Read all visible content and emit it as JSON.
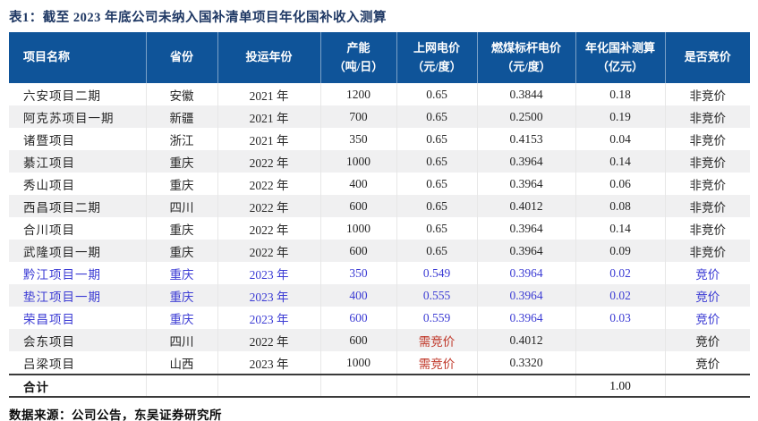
{
  "page": {
    "title": "表1：截至 2023 年底公司未纳入国补清单项目年化国补收入测算",
    "source_note": "数据来源：公司公告，东吴证券研究所"
  },
  "colors": {
    "header_bg": "#0f5499",
    "title_text": "#1f3864",
    "highlight_blue": "#3b3bd4",
    "highlight_red": "#c0392b",
    "band_row_bg": "#f0f0f1"
  },
  "table": {
    "columns": [
      {
        "key": "name",
        "label": "项目名称",
        "sub": ""
      },
      {
        "key": "province",
        "label": "省份",
        "sub": ""
      },
      {
        "key": "year",
        "label": "投运年份",
        "sub": ""
      },
      {
        "key": "capacity",
        "label": "产能",
        "sub": "（吨/日）"
      },
      {
        "key": "price",
        "label": "上网电价",
        "sub": "（元/度）"
      },
      {
        "key": "coal",
        "label": "燃煤标杆电价",
        "sub": "（元/度）"
      },
      {
        "key": "subsidy",
        "label": "年化国补测算",
        "sub": "（亿元）"
      },
      {
        "key": "bidding",
        "label": "是否竞价",
        "sub": ""
      }
    ],
    "rows": [
      {
        "name": "六安项目二期",
        "province": "安徽",
        "year": "2021 年",
        "capacity": "1200",
        "price": "0.65",
        "coal": "0.3844",
        "subsidy": "0.18",
        "bidding": "非竞价",
        "style": "normal",
        "price_style": "normal"
      },
      {
        "name": "阿克苏项目一期",
        "province": "新疆",
        "year": "2021 年",
        "capacity": "700",
        "price": "0.65",
        "coal": "0.2500",
        "subsidy": "0.19",
        "bidding": "非竞价",
        "style": "normal",
        "price_style": "normal"
      },
      {
        "name": "诸暨项目",
        "province": "浙江",
        "year": "2021 年",
        "capacity": "350",
        "price": "0.65",
        "coal": "0.4153",
        "subsidy": "0.04",
        "bidding": "非竞价",
        "style": "normal",
        "price_style": "normal"
      },
      {
        "name": "綦江项目",
        "province": "重庆",
        "year": "2022 年",
        "capacity": "1000",
        "price": "0.65",
        "coal": "0.3964",
        "subsidy": "0.14",
        "bidding": "非竞价",
        "style": "normal",
        "price_style": "normal"
      },
      {
        "name": "秀山项目",
        "province": "重庆",
        "year": "2022 年",
        "capacity": "400",
        "price": "0.65",
        "coal": "0.3964",
        "subsidy": "0.06",
        "bidding": "非竞价",
        "style": "normal",
        "price_style": "normal"
      },
      {
        "name": "西昌项目二期",
        "province": "四川",
        "year": "2022 年",
        "capacity": "600",
        "price": "0.65",
        "coal": "0.4012",
        "subsidy": "0.08",
        "bidding": "非竞价",
        "style": "normal",
        "price_style": "normal"
      },
      {
        "name": "合川项目",
        "province": "重庆",
        "year": "2022 年",
        "capacity": "1000",
        "price": "0.65",
        "coal": "0.3964",
        "subsidy": "0.14",
        "bidding": "非竞价",
        "style": "normal",
        "price_style": "normal"
      },
      {
        "name": "武隆项目一期",
        "province": "重庆",
        "year": "2022 年",
        "capacity": "600",
        "price": "0.65",
        "coal": "0.3964",
        "subsidy": "0.09",
        "bidding": "非竞价",
        "style": "normal",
        "price_style": "normal"
      },
      {
        "name": "黔江项目一期",
        "province": "重庆",
        "year": "2023 年",
        "capacity": "350",
        "price": "0.549",
        "coal": "0.3964",
        "subsidy": "0.02",
        "bidding": "竞价",
        "style": "blue",
        "price_style": "normal"
      },
      {
        "name": "垫江项目一期",
        "province": "重庆",
        "year": "2023 年",
        "capacity": "400",
        "price": "0.555",
        "coal": "0.3964",
        "subsidy": "0.02",
        "bidding": "竞价",
        "style": "blue",
        "price_style": "normal"
      },
      {
        "name": "荣昌项目",
        "province": "重庆",
        "year": "2023 年",
        "capacity": "600",
        "price": "0.559",
        "coal": "0.3964",
        "subsidy": "0.03",
        "bidding": "竞价",
        "style": "blue",
        "price_style": "normal"
      },
      {
        "name": "会东项目",
        "province": "四川",
        "year": "2022 年",
        "capacity": "600",
        "price": "需竞价",
        "coal": "0.4012",
        "subsidy": "",
        "bidding": "竞价",
        "style": "normal",
        "price_style": "red"
      },
      {
        "name": "吕梁项目",
        "province": "山西",
        "year": "2023 年",
        "capacity": "1000",
        "price": "需竞价",
        "coal": "0.3320",
        "subsidy": "",
        "bidding": "竞价",
        "style": "normal",
        "price_style": "red"
      }
    ],
    "total": {
      "label": "合计",
      "subsidy": "1.00"
    }
  }
}
